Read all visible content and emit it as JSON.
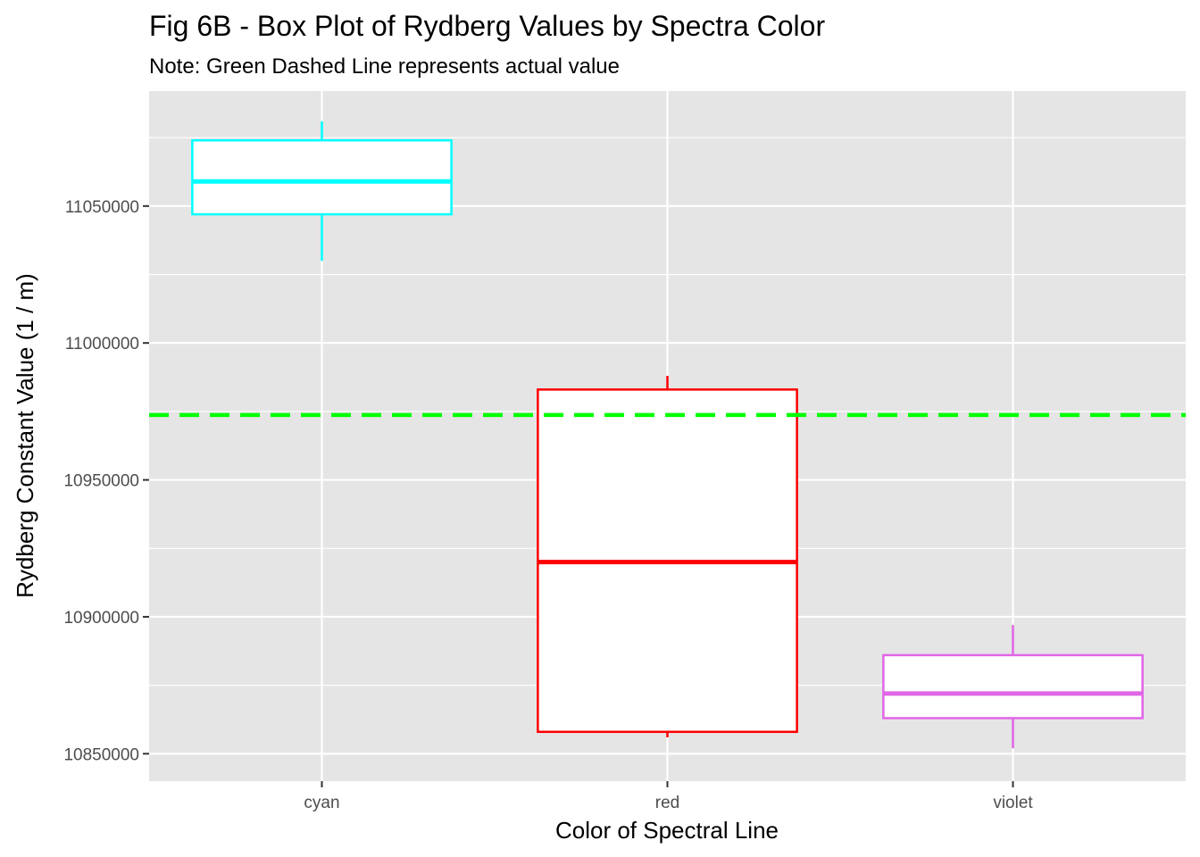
{
  "chart_data": {
    "type": "box",
    "title": "Fig 6B - Box Plot of Rydberg Values by Spectra Color",
    "subtitle": "Note: Green Dashed Line represents actual value",
    "xlabel": "Color of Spectral Line",
    "ylabel": "Rydberg Constant Value (1 / m)",
    "categories": [
      "cyan",
      "red",
      "violet"
    ],
    "y_ticks": [
      "10850000",
      "10900000",
      "10950000",
      "11000000",
      "11050000"
    ],
    "ylim": [
      10840000,
      11092000
    ],
    "grid": true,
    "panel_background": "#e5e5e5",
    "series": [
      {
        "category": "cyan",
        "color": "#00ffff",
        "min": 11030000,
        "q1": 11047000,
        "median": 11059000,
        "q3": 11074000,
        "max": 11081000
      },
      {
        "category": "red",
        "color": "#ff0000",
        "min": 10856000,
        "q1": 10858000,
        "median": 10920000,
        "q3": 10983000,
        "max": 10988000
      },
      {
        "category": "violet",
        "color": "#e066e6",
        "min": 10852000,
        "q1": 10863000,
        "median": 10872000,
        "q3": 10886000,
        "max": 10897000
      }
    ],
    "reference_line": {
      "value": 10973700,
      "color": "#00ff00",
      "style": "dashed"
    }
  }
}
